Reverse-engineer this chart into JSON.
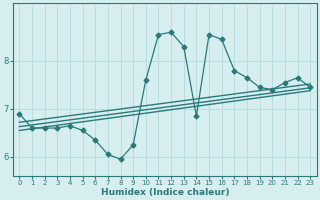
{
  "xlabel": "Humidex (Indice chaleur)",
  "background_color": "#d6eef0",
  "grid_color": "#b8dde0",
  "line_color": "#2a7a7a",
  "x_data": [
    0,
    1,
    2,
    3,
    4,
    5,
    6,
    7,
    8,
    9,
    10,
    11,
    12,
    13,
    14,
    15,
    16,
    17,
    18,
    19,
    20,
    21,
    22,
    23
  ],
  "y_data": [
    6.9,
    6.6,
    6.6,
    6.6,
    6.65,
    6.55,
    6.35,
    6.05,
    5.95,
    6.25,
    7.6,
    8.55,
    8.6,
    8.3,
    6.85,
    8.55,
    8.45,
    7.8,
    7.65,
    7.45,
    7.4,
    7.55,
    7.65,
    7.45
  ],
  "reg_line1_x": [
    0,
    23
  ],
  "reg_line1_y": [
    6.72,
    7.52
  ],
  "reg_line2_x": [
    0,
    23
  ],
  "reg_line2_y": [
    6.63,
    7.44
  ],
  "reg_line3_x": [
    0,
    23
  ],
  "reg_line3_y": [
    6.55,
    7.38
  ],
  "xlim": [
    -0.5,
    23.5
  ],
  "ylim": [
    5.6,
    9.2
  ],
  "yticks": [
    6,
    7,
    8
  ],
  "xticks": [
    0,
    1,
    2,
    3,
    4,
    5,
    6,
    7,
    8,
    9,
    10,
    11,
    12,
    13,
    14,
    15,
    16,
    17,
    18,
    19,
    20,
    21,
    22,
    23
  ]
}
